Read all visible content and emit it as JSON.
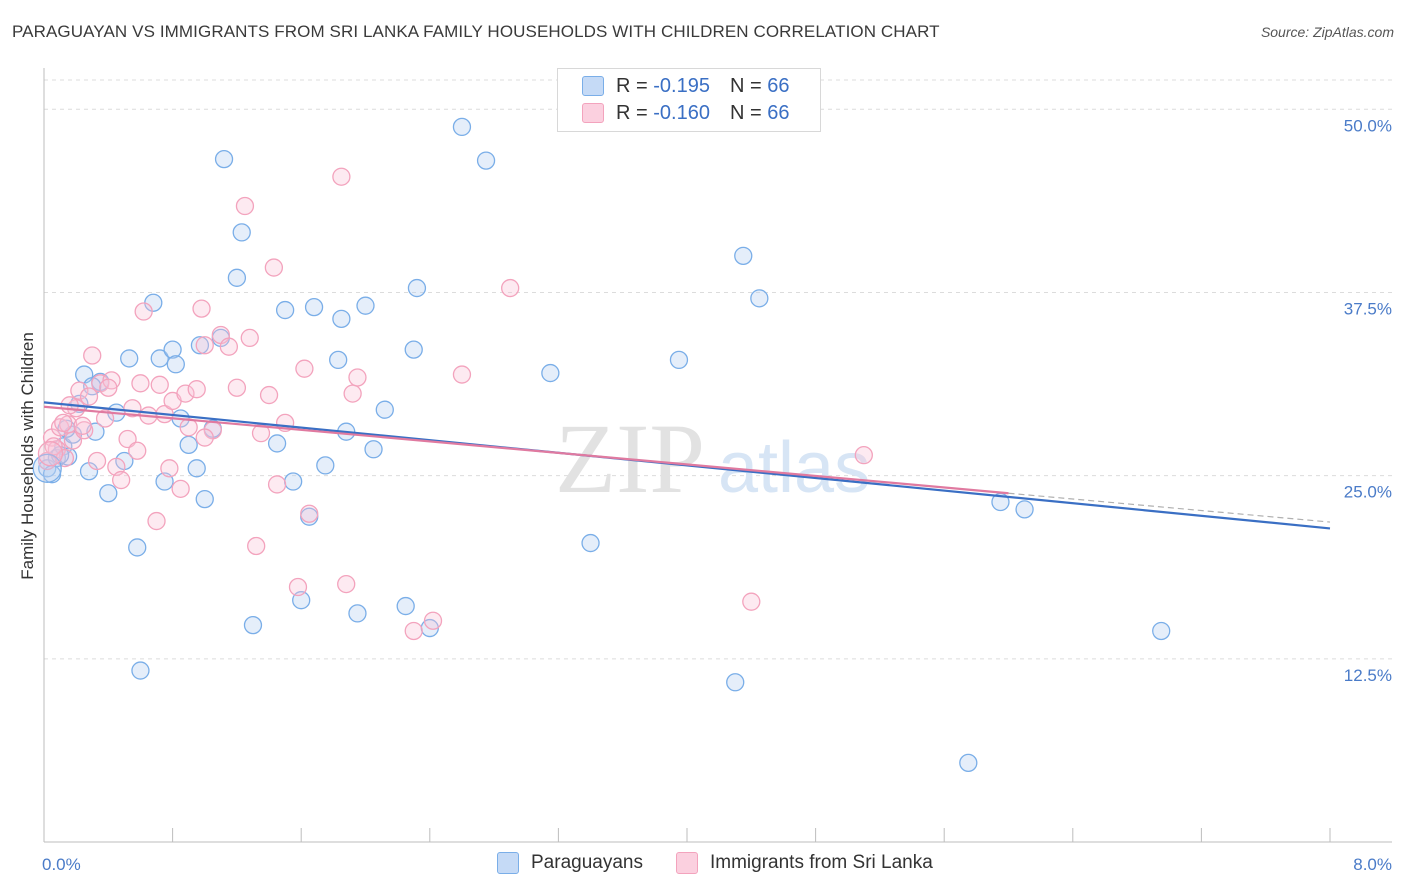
{
  "title": "PARAGUAYAN VS IMMIGRANTS FROM SRI LANKA FAMILY HOUSEHOLDS WITH CHILDREN CORRELATION CHART",
  "source": "Source: ZipAtlas.com",
  "watermark": {
    "zip": "ZIP",
    "atlas": "atlas"
  },
  "legend": {
    "r_label": "R =",
    "n_label": "N =",
    "rows": [
      {
        "r": "-0.195",
        "n": "66",
        "color": "#7aaee8"
      },
      {
        "r": "-0.160",
        "n": "66",
        "color": "#f3a3bd"
      }
    ]
  },
  "bottom_legend": [
    "Paraguayans",
    "Immigrants from Sri Lanka"
  ],
  "chart_data": {
    "type": "scatter",
    "title": "PARAGUAYAN VS IMMIGRANTS FROM SRI LANKA FAMILY HOUSEHOLDS WITH CHILDREN CORRELATION CHART",
    "xlabel": "",
    "ylabel": "Family Households with Children",
    "xlim": [
      0,
      8
    ],
    "ylim": [
      0,
      52
    ],
    "x_tick_labels": [
      "0.0%",
      "8.0%"
    ],
    "y_ticks": [
      12.5,
      25.0,
      37.5,
      50.0
    ],
    "y_tick_labels": [
      "12.5%",
      "25.0%",
      "37.5%",
      "50.0%"
    ],
    "grid": "horizontal dashed",
    "legend_position": "top-center",
    "series": [
      {
        "name": "Paraguayans",
        "color": "#7aaee8",
        "line_color": "#3a6fc4",
        "trend": {
          "x": [
            0,
            8
          ],
          "y": [
            30.0,
            21.4
          ]
        },
        "points": [
          [
            0.02,
            25.5
          ],
          [
            0.08,
            26.2
          ],
          [
            0.12,
            27.0
          ],
          [
            0.15,
            26.3
          ],
          [
            0.18,
            27.8
          ],
          [
            0.22,
            29.9
          ],
          [
            0.25,
            31.9
          ],
          [
            0.28,
            25.3
          ],
          [
            0.32,
            28.0
          ],
          [
            0.35,
            31.4
          ],
          [
            0.4,
            23.8
          ],
          [
            0.45,
            29.3
          ],
          [
            0.5,
            26.0
          ],
          [
            0.53,
            33.0
          ],
          [
            0.58,
            20.1
          ],
          [
            0.6,
            11.7
          ],
          [
            0.68,
            36.8
          ],
          [
            0.72,
            33.0
          ],
          [
            0.75,
            24.6
          ],
          [
            0.8,
            33.6
          ],
          [
            0.82,
            32.6
          ],
          [
            0.85,
            28.9
          ],
          [
            0.9,
            27.1
          ],
          [
            0.95,
            25.5
          ],
          [
            0.97,
            33.9
          ],
          [
            1.0,
            23.4
          ],
          [
            1.05,
            28.2
          ],
          [
            1.1,
            34.4
          ],
          [
            1.12,
            46.6
          ],
          [
            1.2,
            38.5
          ],
          [
            1.23,
            41.6
          ],
          [
            1.3,
            14.8
          ],
          [
            1.45,
            27.2
          ],
          [
            1.5,
            36.3
          ],
          [
            1.55,
            24.6
          ],
          [
            1.6,
            16.5
          ],
          [
            1.65,
            22.2
          ],
          [
            1.68,
            36.5
          ],
          [
            1.75,
            25.7
          ],
          [
            1.83,
            32.9
          ],
          [
            1.85,
            35.7
          ],
          [
            1.88,
            28.0
          ],
          [
            1.95,
            15.6
          ],
          [
            2.0,
            36.6
          ],
          [
            2.05,
            26.8
          ],
          [
            2.12,
            29.5
          ],
          [
            2.25,
            16.1
          ],
          [
            2.3,
            33.6
          ],
          [
            2.32,
            37.8
          ],
          [
            2.4,
            14.6
          ],
          [
            2.6,
            48.8
          ],
          [
            2.75,
            46.5
          ],
          [
            3.15,
            32.0
          ],
          [
            3.4,
            20.4
          ],
          [
            3.95,
            32.9
          ],
          [
            4.3,
            10.9
          ],
          [
            4.35,
            40.0
          ],
          [
            4.45,
            37.1
          ],
          [
            5.75,
            5.4
          ],
          [
            5.95,
            23.2
          ],
          [
            6.1,
            22.7
          ],
          [
            6.95,
            14.4
          ],
          [
            0.05,
            25.1
          ],
          [
            0.1,
            26.4
          ],
          [
            0.14,
            28.2
          ],
          [
            0.3,
            31.1
          ]
        ]
      },
      {
        "name": "Immigrants from Sri Lanka",
        "color": "#f3a3bd",
        "line_color": "#e07aa0",
        "trend": {
          "x": [
            0,
            6
          ],
          "y": [
            29.7,
            23.8
          ]
        },
        "points": [
          [
            0.02,
            26.0
          ],
          [
            0.05,
            27.6
          ],
          [
            0.08,
            26.8
          ],
          [
            0.1,
            28.3
          ],
          [
            0.13,
            26.2
          ],
          [
            0.15,
            28.5
          ],
          [
            0.18,
            27.4
          ],
          [
            0.2,
            29.6
          ],
          [
            0.22,
            30.8
          ],
          [
            0.25,
            28.1
          ],
          [
            0.28,
            30.4
          ],
          [
            0.3,
            33.2
          ],
          [
            0.33,
            26.0
          ],
          [
            0.35,
            31.3
          ],
          [
            0.38,
            28.9
          ],
          [
            0.42,
            31.5
          ],
          [
            0.45,
            25.6
          ],
          [
            0.48,
            24.7
          ],
          [
            0.52,
            27.5
          ],
          [
            0.55,
            29.6
          ],
          [
            0.6,
            31.3
          ],
          [
            0.62,
            36.2
          ],
          [
            0.65,
            29.1
          ],
          [
            0.7,
            21.9
          ],
          [
            0.75,
            29.2
          ],
          [
            0.78,
            25.5
          ],
          [
            0.8,
            30.1
          ],
          [
            0.85,
            24.1
          ],
          [
            0.88,
            30.6
          ],
          [
            0.9,
            28.3
          ],
          [
            0.95,
            30.9
          ],
          [
            0.98,
            36.4
          ],
          [
            1.0,
            33.9
          ],
          [
            1.05,
            28.1
          ],
          [
            1.1,
            34.6
          ],
          [
            1.15,
            33.8
          ],
          [
            1.2,
            31.0
          ],
          [
            1.25,
            43.4
          ],
          [
            1.28,
            34.4
          ],
          [
            1.32,
            20.2
          ],
          [
            1.35,
            27.9
          ],
          [
            1.4,
            30.5
          ],
          [
            1.43,
            39.2
          ],
          [
            1.45,
            24.4
          ],
          [
            1.5,
            28.6
          ],
          [
            1.58,
            17.4
          ],
          [
            1.62,
            32.3
          ],
          [
            1.65,
            22.4
          ],
          [
            1.85,
            45.4
          ],
          [
            1.88,
            17.6
          ],
          [
            1.92,
            30.6
          ],
          [
            1.95,
            31.7
          ],
          [
            2.3,
            14.4
          ],
          [
            2.42,
            15.1
          ],
          [
            2.6,
            31.9
          ],
          [
            2.9,
            37.8
          ],
          [
            4.4,
            16.4
          ],
          [
            5.1,
            26.4
          ],
          [
            0.06,
            27.0
          ],
          [
            0.12,
            28.6
          ],
          [
            0.16,
            29.8
          ],
          [
            0.24,
            28.4
          ],
          [
            0.4,
            31.0
          ],
          [
            0.58,
            26.7
          ],
          [
            0.72,
            31.2
          ],
          [
            1.0,
            27.6
          ]
        ]
      }
    ]
  }
}
